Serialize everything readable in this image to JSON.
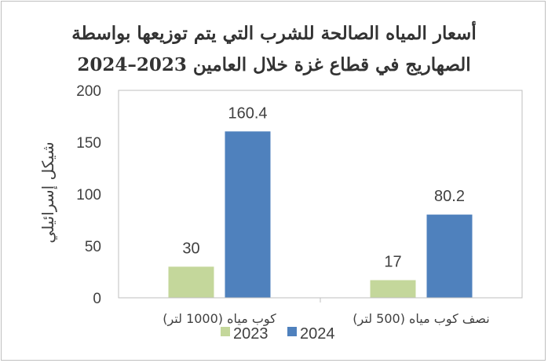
{
  "chart_data": {
    "type": "bar",
    "title_line1": "أسعار المياه الصالحة للشرب التي يتم توزيعها بواسطة",
    "title_line2": "الصهاريج في قطاع غزة خلال العامين 2023–2024",
    "ylabel": "شيكل إسرائيلي",
    "xlabel": "",
    "categories": [
      "كوب مياه (1000 لتر)",
      "نصف كوب مياه (500 لتر)"
    ],
    "series": [
      {
        "name": "2023",
        "values": [
          30,
          17
        ],
        "color": "#c4d79b"
      },
      {
        "name": "2024",
        "values": [
          160.4,
          80.2
        ],
        "color": "#4f81bd"
      }
    ],
    "data_labels": [
      [
        "30",
        "17"
      ],
      [
        "160.4",
        "80.2"
      ]
    ],
    "y_ticks": [
      "0",
      "50",
      "100",
      "150",
      "200"
    ],
    "ylim": [
      0,
      200
    ],
    "grid": false,
    "legend_position": "bottom"
  }
}
